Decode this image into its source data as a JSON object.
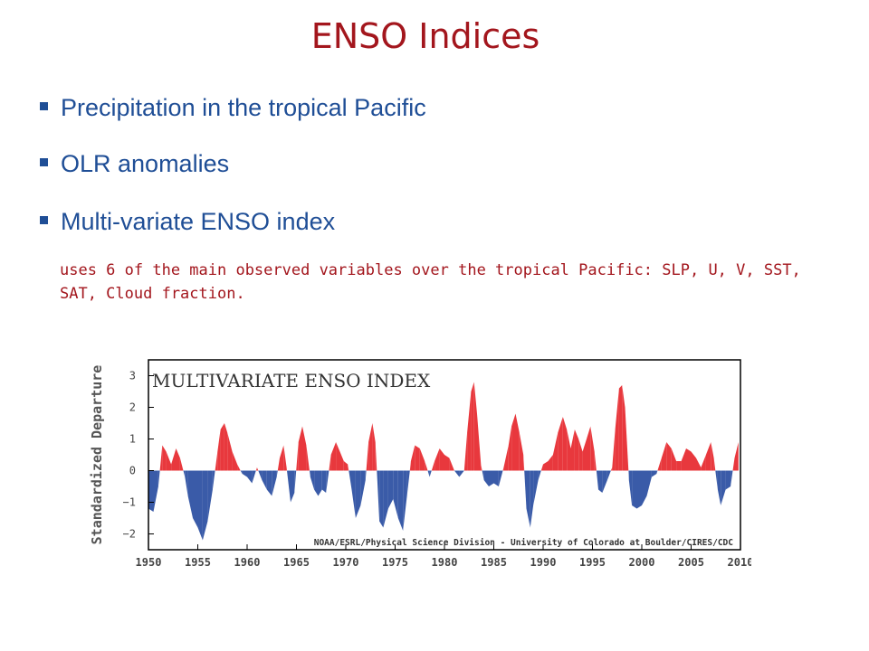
{
  "slide": {
    "title": "ENSO Indices",
    "bullets": [
      "Precipitation in the tropical Pacific",
      "OLR anomalies",
      "Multi-variate ENSO index"
    ],
    "subtext": "uses 6 of the main observed variables over the tropical Pacific: SLP, U, V, SST, SAT, Cloud fraction."
  },
  "colors": {
    "title": "#a3161d",
    "bullet": "#1f4e96",
    "positive": "#e8383d",
    "negative": "#3a5ba8"
  },
  "chart_data": {
    "type": "area",
    "title": "MULTIVARIATE ENSO INDEX",
    "ylabel": "Standardized Departure",
    "xlabel": "",
    "credit": "NOAA/ESRL/Physical Science Division - University of Colorado at Boulder/CIRES/CDC",
    "xlim": [
      1950,
      2010
    ],
    "ylim": [
      -2.5,
      3.5
    ],
    "xticks": [
      1950,
      1955,
      1960,
      1965,
      1970,
      1975,
      1980,
      1985,
      1990,
      1995,
      2000,
      2005,
      2010
    ],
    "yticks": [
      -2,
      -1,
      0,
      1,
      2,
      3
    ],
    "grid": false,
    "series": [
      {
        "x": [
          1950.0,
          1950.5,
          1951.0,
          1951.4,
          1951.8,
          1952.3,
          1952.8,
          1953.2,
          1953.7,
          1954.0,
          1954.5,
          1955.0,
          1955.5,
          1956.0,
          1956.5,
          1957.0,
          1957.3,
          1957.7,
          1958.0,
          1958.5,
          1959.0,
          1959.5,
          1960.0,
          1960.5,
          1961.0,
          1961.5,
          1962.0,
          1962.5,
          1963.0,
          1963.3,
          1963.7,
          1964.0,
          1964.4,
          1964.8,
          1965.2,
          1965.6,
          1966.0,
          1966.4,
          1966.8,
          1967.2,
          1967.6,
          1968.0,
          1968.5,
          1969.0,
          1969.4,
          1969.8,
          1970.2,
          1970.6,
          1971.0,
          1971.5,
          1972.0,
          1972.3,
          1972.7,
          1973.0,
          1973.4,
          1973.8,
          1974.3,
          1974.8,
          1975.3,
          1975.8,
          1976.2,
          1976.6,
          1977.0,
          1977.5,
          1978.0,
          1978.5,
          1979.0,
          1979.5,
          1980.0,
          1980.5,
          1981.0,
          1981.5,
          1982.0,
          1982.3,
          1982.7,
          1983.0,
          1983.3,
          1983.7,
          1984.0,
          1984.5,
          1985.0,
          1985.5,
          1986.0,
          1986.5,
          1986.8,
          1987.2,
          1987.6,
          1988.0,
          1988.3,
          1988.7,
          1989.0,
          1989.5,
          1990.0,
          1990.5,
          1991.0,
          1991.5,
          1992.0,
          1992.4,
          1992.8,
          1993.2,
          1993.6,
          1994.0,
          1994.4,
          1994.8,
          1995.2,
          1995.6,
          1996.0,
          1996.5,
          1997.0,
          1997.3,
          1997.7,
          1998.0,
          1998.3,
          1998.7,
          1999.0,
          1999.5,
          2000.0,
          2000.5,
          2001.0,
          2001.5,
          2002.0,
          2002.5,
          2003.0,
          2003.5,
          2004.0,
          2004.5,
          2005.0,
          2005.5,
          2006.0,
          2006.5,
          2007.0,
          2007.3,
          2007.7,
          2008.0,
          2008.5,
          2009.0,
          2009.4,
          2009.8
        ],
        "values": [
          -1.2,
          -1.3,
          -0.5,
          0.8,
          0.6,
          0.2,
          0.7,
          0.4,
          -0.2,
          -0.8,
          -1.5,
          -1.8,
          -2.2,
          -1.6,
          -0.6,
          0.6,
          1.3,
          1.5,
          1.2,
          0.6,
          0.2,
          -0.1,
          -0.2,
          -0.4,
          0.1,
          -0.3,
          -0.6,
          -0.8,
          -0.2,
          0.4,
          0.8,
          0.1,
          -1.0,
          -0.7,
          0.9,
          1.4,
          0.8,
          -0.2,
          -0.6,
          -0.8,
          -0.6,
          -0.7,
          0.5,
          0.9,
          0.6,
          0.3,
          0.2,
          -0.6,
          -1.5,
          -1.1,
          -0.3,
          0.9,
          1.5,
          0.9,
          -1.6,
          -1.8,
          -1.2,
          -0.9,
          -1.5,
          -1.9,
          -0.8,
          0.3,
          0.8,
          0.7,
          0.3,
          -0.2,
          0.3,
          0.7,
          0.5,
          0.4,
          0.0,
          -0.2,
          0.0,
          1.2,
          2.5,
          2.8,
          1.8,
          0.2,
          -0.3,
          -0.5,
          -0.4,
          -0.5,
          0.1,
          0.8,
          1.4,
          1.8,
          1.2,
          0.5,
          -1.2,
          -1.8,
          -1.1,
          -0.3,
          0.2,
          0.3,
          0.5,
          1.2,
          1.7,
          1.3,
          0.7,
          1.3,
          1.0,
          0.6,
          1.0,
          1.4,
          0.6,
          -0.6,
          -0.7,
          -0.3,
          0.1,
          1.3,
          2.6,
          2.7,
          2.0,
          -0.3,
          -1.1,
          -1.2,
          -1.1,
          -0.8,
          -0.2,
          -0.1,
          0.4,
          0.9,
          0.7,
          0.3,
          0.3,
          0.7,
          0.6,
          0.4,
          0.1,
          0.5,
          0.9,
          0.4,
          -0.6,
          -1.1,
          -0.6,
          -0.5,
          0.4,
          0.9
        ]
      }
    ]
  }
}
